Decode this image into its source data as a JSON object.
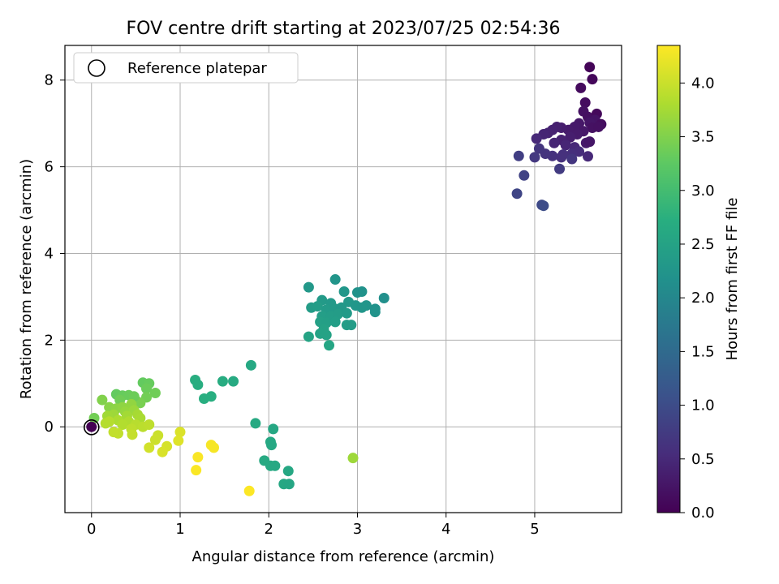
{
  "chart_data": {
    "type": "scatter",
    "title": "FOV centre drift starting at 2023/07/25 02:54:36",
    "xlabel": "Angular distance from reference (arcmin)",
    "ylabel": "Rotation from reference (arcmin)",
    "xlim": [
      -0.3,
      5.98
    ],
    "ylim": [
      -1.98,
      8.8
    ],
    "xticks": [
      0,
      1,
      2,
      3,
      4,
      5
    ],
    "yticks": [
      0,
      2,
      4,
      6,
      8
    ],
    "grid": true,
    "legend": {
      "position": "top-left",
      "entries": [
        "Reference platepar"
      ]
    },
    "reference_point": {
      "x": 0,
      "y": 0
    },
    "colorbar": {
      "label": "Hours from first FF file",
      "colormap": "viridis",
      "range": [
        0.0,
        4.35
      ],
      "ticks": [
        "0.0",
        "0.5",
        "1.0",
        "1.5",
        "2.0",
        "2.5",
        "3.0",
        "3.5",
        "4.0"
      ]
    },
    "points": [
      {
        "x": 5.62,
        "y": 8.3,
        "c": 0.05
      },
      {
        "x": 5.65,
        "y": 8.02,
        "c": 0.08
      },
      {
        "x": 5.52,
        "y": 7.82,
        "c": 0.12
      },
      {
        "x": 5.57,
        "y": 7.48,
        "c": 0.15
      },
      {
        "x": 5.55,
        "y": 7.28,
        "c": 0.2
      },
      {
        "x": 5.6,
        "y": 7.15,
        "c": 0.18
      },
      {
        "x": 5.7,
        "y": 7.22,
        "c": 0.1
      },
      {
        "x": 5.68,
        "y": 7.08,
        "c": 0.22
      },
      {
        "x": 5.62,
        "y": 7.02,
        "c": 0.25
      },
      {
        "x": 5.5,
        "y": 7.0,
        "c": 0.28
      },
      {
        "x": 5.45,
        "y": 6.92,
        "c": 0.3
      },
      {
        "x": 5.38,
        "y": 6.85,
        "c": 0.32
      },
      {
        "x": 5.3,
        "y": 6.9,
        "c": 0.35
      },
      {
        "x": 5.25,
        "y": 6.92,
        "c": 0.38
      },
      {
        "x": 5.2,
        "y": 6.85,
        "c": 0.4
      },
      {
        "x": 5.15,
        "y": 6.78,
        "c": 0.42
      },
      {
        "x": 5.1,
        "y": 6.75,
        "c": 0.45
      },
      {
        "x": 5.02,
        "y": 6.65,
        "c": 0.5
      },
      {
        "x": 5.65,
        "y": 6.9,
        "c": 0.2
      },
      {
        "x": 5.55,
        "y": 6.82,
        "c": 0.28
      },
      {
        "x": 5.48,
        "y": 6.75,
        "c": 0.32
      },
      {
        "x": 5.4,
        "y": 6.68,
        "c": 0.36
      },
      {
        "x": 5.3,
        "y": 6.62,
        "c": 0.4
      },
      {
        "x": 5.22,
        "y": 6.55,
        "c": 0.44
      },
      {
        "x": 5.35,
        "y": 6.5,
        "c": 0.46
      },
      {
        "x": 5.45,
        "y": 6.45,
        "c": 0.5
      },
      {
        "x": 5.58,
        "y": 6.55,
        "c": 0.3
      },
      {
        "x": 5.62,
        "y": 6.58,
        "c": 0.26
      },
      {
        "x": 5.5,
        "y": 6.35,
        "c": 0.55
      },
      {
        "x": 5.42,
        "y": 6.3,
        "c": 0.58
      },
      {
        "x": 5.32,
        "y": 6.28,
        "c": 0.6
      },
      {
        "x": 5.2,
        "y": 6.25,
        "c": 0.62
      },
      {
        "x": 5.12,
        "y": 6.3,
        "c": 0.64
      },
      {
        "x": 5.05,
        "y": 6.42,
        "c": 0.66
      },
      {
        "x": 5.0,
        "y": 6.22,
        "c": 0.7
      },
      {
        "x": 5.3,
        "y": 6.22,
        "c": 0.6
      },
      {
        "x": 5.42,
        "y": 6.18,
        "c": 0.68
      },
      {
        "x": 5.6,
        "y": 6.24,
        "c": 0.5
      },
      {
        "x": 5.75,
        "y": 6.98,
        "c": 0.15
      },
      {
        "x": 5.72,
        "y": 6.92,
        "c": 0.18
      },
      {
        "x": 5.28,
        "y": 5.95,
        "c": 0.75
      },
      {
        "x": 4.82,
        "y": 6.25,
        "c": 0.8
      },
      {
        "x": 4.88,
        "y": 5.8,
        "c": 0.85
      },
      {
        "x": 4.8,
        "y": 5.38,
        "c": 0.9
      },
      {
        "x": 5.08,
        "y": 5.12,
        "c": 0.95
      },
      {
        "x": 5.1,
        "y": 5.1,
        "c": 1.0
      },
      {
        "x": 2.75,
        "y": 3.4,
        "c": 2.25
      },
      {
        "x": 2.45,
        "y": 3.22,
        "c": 2.3
      },
      {
        "x": 2.85,
        "y": 3.12,
        "c": 2.28
      },
      {
        "x": 3.0,
        "y": 3.1,
        "c": 2.22
      },
      {
        "x": 3.05,
        "y": 3.12,
        "c": 2.2
      },
      {
        "x": 3.3,
        "y": 2.97,
        "c": 2.15
      },
      {
        "x": 2.6,
        "y": 2.92,
        "c": 2.35
      },
      {
        "x": 2.7,
        "y": 2.85,
        "c": 2.33
      },
      {
        "x": 2.9,
        "y": 2.88,
        "c": 2.3
      },
      {
        "x": 2.98,
        "y": 2.8,
        "c": 2.28
      },
      {
        "x": 3.1,
        "y": 2.8,
        "c": 2.25
      },
      {
        "x": 3.2,
        "y": 2.72,
        "c": 2.2
      },
      {
        "x": 3.2,
        "y": 2.65,
        "c": 2.22
      },
      {
        "x": 2.48,
        "y": 2.75,
        "c": 2.38
      },
      {
        "x": 2.55,
        "y": 2.78,
        "c": 2.4
      },
      {
        "x": 2.65,
        "y": 2.7,
        "c": 2.36
      },
      {
        "x": 2.75,
        "y": 2.72,
        "c": 2.34
      },
      {
        "x": 2.82,
        "y": 2.75,
        "c": 2.3
      },
      {
        "x": 3.05,
        "y": 2.75,
        "c": 2.26
      },
      {
        "x": 2.6,
        "y": 2.55,
        "c": 2.42
      },
      {
        "x": 2.7,
        "y": 2.55,
        "c": 2.4
      },
      {
        "x": 2.78,
        "y": 2.6,
        "c": 2.38
      },
      {
        "x": 2.88,
        "y": 2.62,
        "c": 2.35
      },
      {
        "x": 2.58,
        "y": 2.42,
        "c": 2.45
      },
      {
        "x": 2.65,
        "y": 2.4,
        "c": 2.44
      },
      {
        "x": 2.75,
        "y": 2.42,
        "c": 2.42
      },
      {
        "x": 2.88,
        "y": 2.35,
        "c": 2.4
      },
      {
        "x": 2.93,
        "y": 2.35,
        "c": 2.38
      },
      {
        "x": 2.62,
        "y": 2.25,
        "c": 2.48
      },
      {
        "x": 2.58,
        "y": 2.15,
        "c": 2.5
      },
      {
        "x": 2.65,
        "y": 2.12,
        "c": 2.5
      },
      {
        "x": 2.45,
        "y": 2.08,
        "c": 2.52
      },
      {
        "x": 2.68,
        "y": 1.88,
        "c": 2.55
      },
      {
        "x": 1.8,
        "y": 1.42,
        "c": 2.6
      },
      {
        "x": 1.6,
        "y": 1.05,
        "c": 2.65
      },
      {
        "x": 1.48,
        "y": 1.05,
        "c": 2.68
      },
      {
        "x": 1.17,
        "y": 1.08,
        "c": 2.7
      },
      {
        "x": 1.2,
        "y": 0.97,
        "c": 2.7
      },
      {
        "x": 1.35,
        "y": 0.7,
        "c": 2.72
      },
      {
        "x": 1.27,
        "y": 0.65,
        "c": 2.72
      },
      {
        "x": 1.85,
        "y": 0.08,
        "c": 2.62
      },
      {
        "x": 2.05,
        "y": -0.05,
        "c": 2.58
      },
      {
        "x": 2.02,
        "y": -0.35,
        "c": 2.6
      },
      {
        "x": 2.03,
        "y": -0.42,
        "c": 2.6
      },
      {
        "x": 1.95,
        "y": -0.78,
        "c": 2.62
      },
      {
        "x": 2.02,
        "y": -0.9,
        "c": 2.62
      },
      {
        "x": 2.07,
        "y": -0.9,
        "c": 2.6
      },
      {
        "x": 2.22,
        "y": -1.02,
        "c": 2.58
      },
      {
        "x": 2.17,
        "y": -1.32,
        "c": 2.58
      },
      {
        "x": 2.23,
        "y": -1.32,
        "c": 2.56
      },
      {
        "x": 0.58,
        "y": 1.02,
        "c": 3.3
      },
      {
        "x": 0.65,
        "y": 1.0,
        "c": 3.32
      },
      {
        "x": 0.62,
        "y": 0.88,
        "c": 3.35
      },
      {
        "x": 0.72,
        "y": 0.78,
        "c": 3.38
      },
      {
        "x": 0.62,
        "y": 0.68,
        "c": 3.4
      },
      {
        "x": 0.52,
        "y": 0.58,
        "c": 3.42
      },
      {
        "x": 0.55,
        "y": 0.55,
        "c": 3.45
      },
      {
        "x": 0.28,
        "y": 0.75,
        "c": 3.3
      },
      {
        "x": 0.35,
        "y": 0.72,
        "c": 3.32
      },
      {
        "x": 0.42,
        "y": 0.73,
        "c": 3.34
      },
      {
        "x": 0.48,
        "y": 0.7,
        "c": 3.36
      },
      {
        "x": 0.32,
        "y": 0.62,
        "c": 3.38
      },
      {
        "x": 0.12,
        "y": 0.62,
        "c": 3.5
      },
      {
        "x": 0.2,
        "y": 0.45,
        "c": 3.55
      },
      {
        "x": 0.28,
        "y": 0.42,
        "c": 3.58
      },
      {
        "x": 0.35,
        "y": 0.45,
        "c": 3.6
      },
      {
        "x": 0.45,
        "y": 0.52,
        "c": 3.62
      },
      {
        "x": 0.38,
        "y": 0.35,
        "c": 3.65
      },
      {
        "x": 0.48,
        "y": 0.38,
        "c": 3.68
      },
      {
        "x": 0.25,
        "y": 0.28,
        "c": 3.7
      },
      {
        "x": 0.18,
        "y": 0.25,
        "c": 3.72
      },
      {
        "x": 0.4,
        "y": 0.25,
        "c": 3.74
      },
      {
        "x": 0.52,
        "y": 0.28,
        "c": 3.76
      },
      {
        "x": 0.55,
        "y": 0.2,
        "c": 3.78
      },
      {
        "x": 0.3,
        "y": 0.15,
        "c": 3.8
      },
      {
        "x": 0.42,
        "y": 0.12,
        "c": 3.82
      },
      {
        "x": 0.35,
        "y": 0.05,
        "c": 3.84
      },
      {
        "x": 0.16,
        "y": 0.08,
        "c": 3.86
      },
      {
        "x": 0.2,
        "y": 0.12,
        "c": 3.86
      },
      {
        "x": 0.5,
        "y": 0.05,
        "c": 3.88
      },
      {
        "x": 0.58,
        "y": 0.0,
        "c": 3.9
      },
      {
        "x": 0.65,
        "y": 0.05,
        "c": 3.92
      },
      {
        "x": 0.45,
        "y": -0.05,
        "c": 3.92
      },
      {
        "x": 0.3,
        "y": -0.15,
        "c": 3.94
      },
      {
        "x": 0.25,
        "y": -0.12,
        "c": 3.95
      },
      {
        "x": 0.46,
        "y": -0.18,
        "c": 3.96
      },
      {
        "x": 0.75,
        "y": -0.2,
        "c": 4.0
      },
      {
        "x": 0.72,
        "y": -0.3,
        "c": 4.02
      },
      {
        "x": 0.65,
        "y": -0.48,
        "c": 4.05
      },
      {
        "x": 0.85,
        "y": -0.45,
        "c": 4.08
      },
      {
        "x": 0.8,
        "y": -0.58,
        "c": 4.1
      },
      {
        "x": 1.0,
        "y": -0.12,
        "c": 4.12
      },
      {
        "x": 0.98,
        "y": -0.32,
        "c": 4.14
      },
      {
        "x": 0.03,
        "y": 0.2,
        "c": 3.4
      },
      {
        "x": 2.95,
        "y": -0.72,
        "c": 3.7
      },
      {
        "x": 1.35,
        "y": -0.42,
        "c": 4.3
      },
      {
        "x": 1.38,
        "y": -0.48,
        "c": 4.3
      },
      {
        "x": 1.2,
        "y": -0.7,
        "c": 4.32
      },
      {
        "x": 1.18,
        "y": -1.0,
        "c": 4.33
      },
      {
        "x": 1.78,
        "y": -1.48,
        "c": 4.34
      },
      {
        "x": 0.0,
        "y": 0.0,
        "c": 0.0
      }
    ]
  }
}
